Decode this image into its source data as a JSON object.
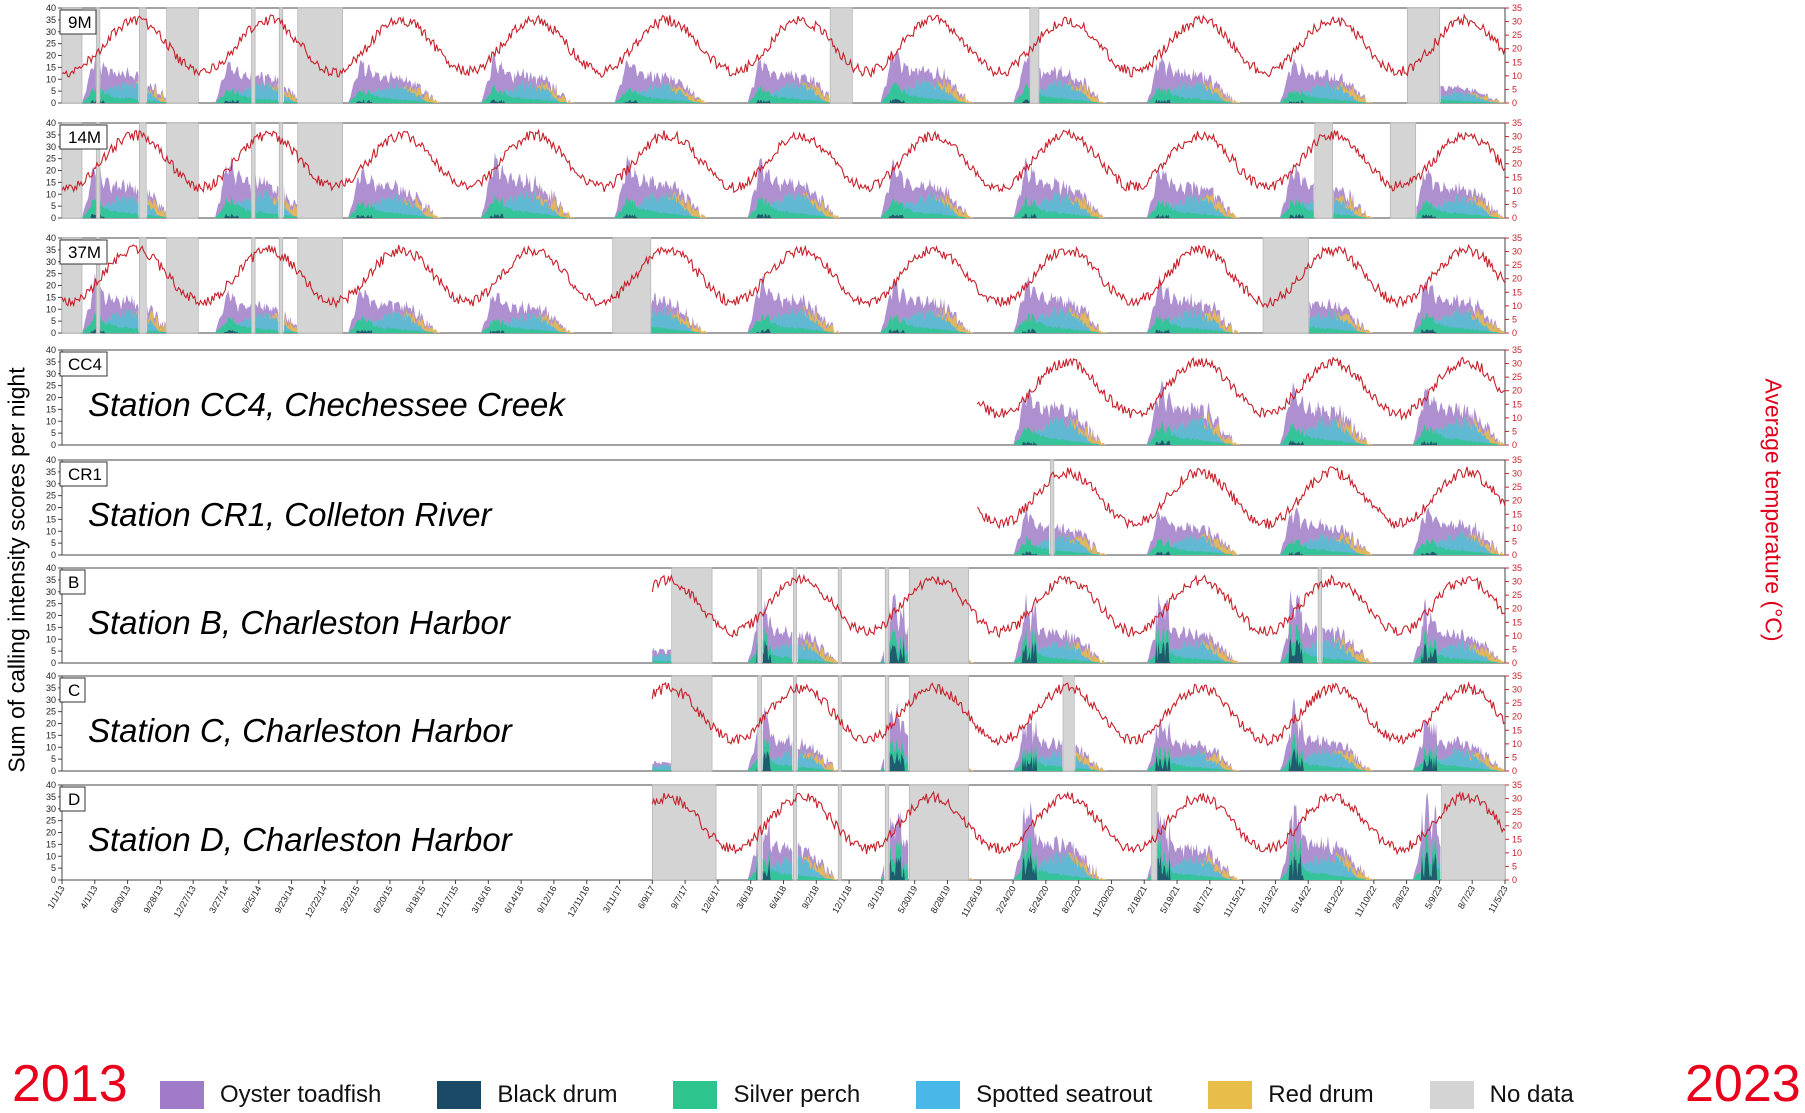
{
  "figure": {
    "y_label_left": "Sum of calling intensity scores per night",
    "y_label_right": "Average temperature (°C)",
    "year_start": "2013",
    "year_end": "2023"
  },
  "colors": {
    "oyster_toadfish": "#a07cc8",
    "black_drum": "#1a4a66",
    "silver_perch": "#2ec48e",
    "spotted_seatrout": "#49b8e8",
    "red_drum": "#e9bd4a",
    "no_data": "#d4d4d4",
    "temperature": "#c8202a"
  },
  "legend": [
    {
      "label": "Oyster toadfish",
      "color": "#a07cc8"
    },
    {
      "label": "Black drum",
      "color": "#1a4a66"
    },
    {
      "label": "Silver perch",
      "color": "#2ec48e"
    },
    {
      "label": "Spotted seatrout",
      "color": "#49b8e8"
    },
    {
      "label": "Red drum",
      "color": "#e9bd4a"
    },
    {
      "label": "No data",
      "color": "#d4d4d4"
    }
  ],
  "chart_data": {
    "type": "area",
    "x_axis": {
      "date_start": "2013-01-01",
      "date_end": "2023-11-05",
      "tick_labels": [
        "1/1/13",
        "4/1/13",
        "6/30/13",
        "9/28/13",
        "12/27/13",
        "3/27/14",
        "6/25/14",
        "9/23/14",
        "12/22/14",
        "3/22/15",
        "6/20/15",
        "9/18/15",
        "12/17/15",
        "3/16/16",
        "6/14/16",
        "9/12/16",
        "12/11/16",
        "3/11/17",
        "6/9/17",
        "9/7/17",
        "12/6/17",
        "3/6/18",
        "6/4/18",
        "9/2/18",
        "12/1/18",
        "3/1/19",
        "5/30/19",
        "8/28/19",
        "11/26/19",
        "2/24/20",
        "5/24/20",
        "8/22/20",
        "11/20/20",
        "2/18/21",
        "5/19/21",
        "8/17/21",
        "11/15/21",
        "2/13/22",
        "5/14/22",
        "8/12/22",
        "11/10/22",
        "2/8/23",
        "5/9/23",
        "8/7/23",
        "11/5/23"
      ]
    },
    "y_axis_left": {
      "label": "Sum of calling intensity scores per night",
      "ylim": [
        0,
        40
      ],
      "ticks": [
        0,
        5,
        10,
        15,
        20,
        25,
        30,
        35,
        40
      ]
    },
    "y_axis_right": {
      "label": "Average temperature (°C)",
      "ylim": [
        0,
        35
      ],
      "ticks": [
        0,
        5,
        10,
        15,
        20,
        25,
        30,
        35
      ]
    },
    "series": [
      {
        "name": "Oyster toadfish"
      },
      {
        "name": "Black drum"
      },
      {
        "name": "Silver perch"
      },
      {
        "name": "Spotted seatrout"
      },
      {
        "name": "Red drum"
      }
    ],
    "panels": [
      {
        "label": "9M",
        "station_name": "",
        "data_start": "2013-01-01",
        "no_data": [
          [
            "2013-01-01",
            "2013-02-25"
          ],
          [
            "2013-04-05",
            "2013-04-15"
          ],
          [
            "2013-08-01",
            "2013-08-20"
          ],
          [
            "2013-10-15",
            "2014-01-10"
          ],
          [
            "2014-06-05",
            "2014-06-15"
          ],
          [
            "2014-08-20",
            "2014-08-30"
          ],
          [
            "2014-10-10",
            "2015-02-10"
          ],
          [
            "2018-10-10",
            "2018-12-10"
          ],
          [
            "2020-04-10",
            "2020-05-05"
          ],
          [
            "2023-02-10",
            "2023-05-10"
          ]
        ],
        "peak_scores": [
          28,
          24,
          25,
          26,
          26,
          26,
          30,
          28,
          27,
          26,
          14
        ]
      },
      {
        "label": "14M",
        "station_name": "",
        "data_start": "2013-01-01",
        "no_data": [
          [
            "2013-01-01",
            "2013-02-25"
          ],
          [
            "2013-04-05",
            "2013-04-15"
          ],
          [
            "2013-08-01",
            "2013-08-20"
          ],
          [
            "2013-10-15",
            "2014-01-10"
          ],
          [
            "2014-06-05",
            "2014-06-15"
          ],
          [
            "2014-08-20",
            "2014-08-30"
          ],
          [
            "2014-10-10",
            "2015-02-10"
          ],
          [
            "2022-06-01",
            "2022-07-20"
          ],
          [
            "2022-12-25",
            "2023-03-05"
          ]
        ],
        "peak_scores": [
          30,
          34,
          29,
          35,
          33,
          32,
          31,
          31,
          30,
          30,
          28
        ]
      },
      {
        "label": "37M",
        "station_name": "",
        "data_start": "2013-01-01",
        "no_data": [
          [
            "2013-01-01",
            "2013-02-25"
          ],
          [
            "2013-04-05",
            "2013-04-15"
          ],
          [
            "2013-08-01",
            "2013-08-20"
          ],
          [
            "2013-10-15",
            "2014-01-10"
          ],
          [
            "2014-06-05",
            "2014-06-15"
          ],
          [
            "2014-08-20",
            "2014-08-30"
          ],
          [
            "2014-10-10",
            "2015-02-10"
          ],
          [
            "2017-02-20",
            "2017-06-05"
          ],
          [
            "2022-01-10",
            "2022-05-15"
          ]
        ],
        "peak_scores": [
          30,
          24,
          26,
          24,
          30,
          31,
          30,
          31,
          30,
          28,
          30
        ]
      },
      {
        "label": "CC4",
        "station_name": "Station CC4, Chechessee Creek",
        "data_start": "2019-11-15",
        "no_data": [],
        "peak_scores": [
          36,
          33,
          34,
          33
        ]
      },
      {
        "label": "CR1",
        "station_name": "Station CR1, Colleton River",
        "data_start": "2019-11-15",
        "no_data": [
          [
            "2020-06-05",
            "2020-06-15"
          ]
        ],
        "peak_scores": [
          27,
          26,
          26,
          28
        ]
      },
      {
        "label": "B",
        "station_name": "Station B, Charleston Harbor",
        "data_start": "2017-06-09",
        "no_data": [
          [
            "2017-08-01",
            "2017-11-20"
          ],
          [
            "2018-03-25",
            "2018-04-05"
          ],
          [
            "2018-07-01",
            "2018-07-10"
          ],
          [
            "2018-11-01",
            "2018-11-10"
          ],
          [
            "2019-03-10",
            "2019-03-20"
          ],
          [
            "2019-05-15",
            "2019-10-25"
          ],
          [
            "2022-06-10",
            "2022-06-20"
          ]
        ],
        "peak_scores": [
          12,
          28,
          30,
          28,
          29,
          31,
          26
        ]
      },
      {
        "label": "C",
        "station_name": "Station C, Charleston Harbor",
        "data_start": "2017-06-09",
        "no_data": [
          [
            "2017-08-01",
            "2017-11-20"
          ],
          [
            "2018-03-25",
            "2018-04-05"
          ],
          [
            "2018-07-01",
            "2018-07-10"
          ],
          [
            "2018-11-01",
            "2018-11-10"
          ],
          [
            "2019-03-10",
            "2019-03-20"
          ],
          [
            "2019-05-15",
            "2019-10-25"
          ],
          [
            "2020-07-10",
            "2020-08-10"
          ]
        ],
        "peak_scores": [
          8,
          28,
          30,
          26,
          25,
          28,
          26
        ]
      },
      {
        "label": "D",
        "station_name": "Station D, Charleston Harbor",
        "data_start": "2017-06-09",
        "no_data": [
          [
            "2017-06-09",
            "2017-12-01"
          ],
          [
            "2018-03-25",
            "2018-04-05"
          ],
          [
            "2018-07-01",
            "2018-07-10"
          ],
          [
            "2018-11-01",
            "2018-11-10"
          ],
          [
            "2019-03-10",
            "2019-03-20"
          ],
          [
            "2019-05-15",
            "2019-10-25"
          ],
          [
            "2021-03-10",
            "2021-03-25"
          ],
          [
            "2023-05-15",
            "2023-11-05"
          ]
        ],
        "peak_scores": [
          0,
          30,
          30,
          33,
          30,
          33,
          35
        ]
      }
    ]
  }
}
